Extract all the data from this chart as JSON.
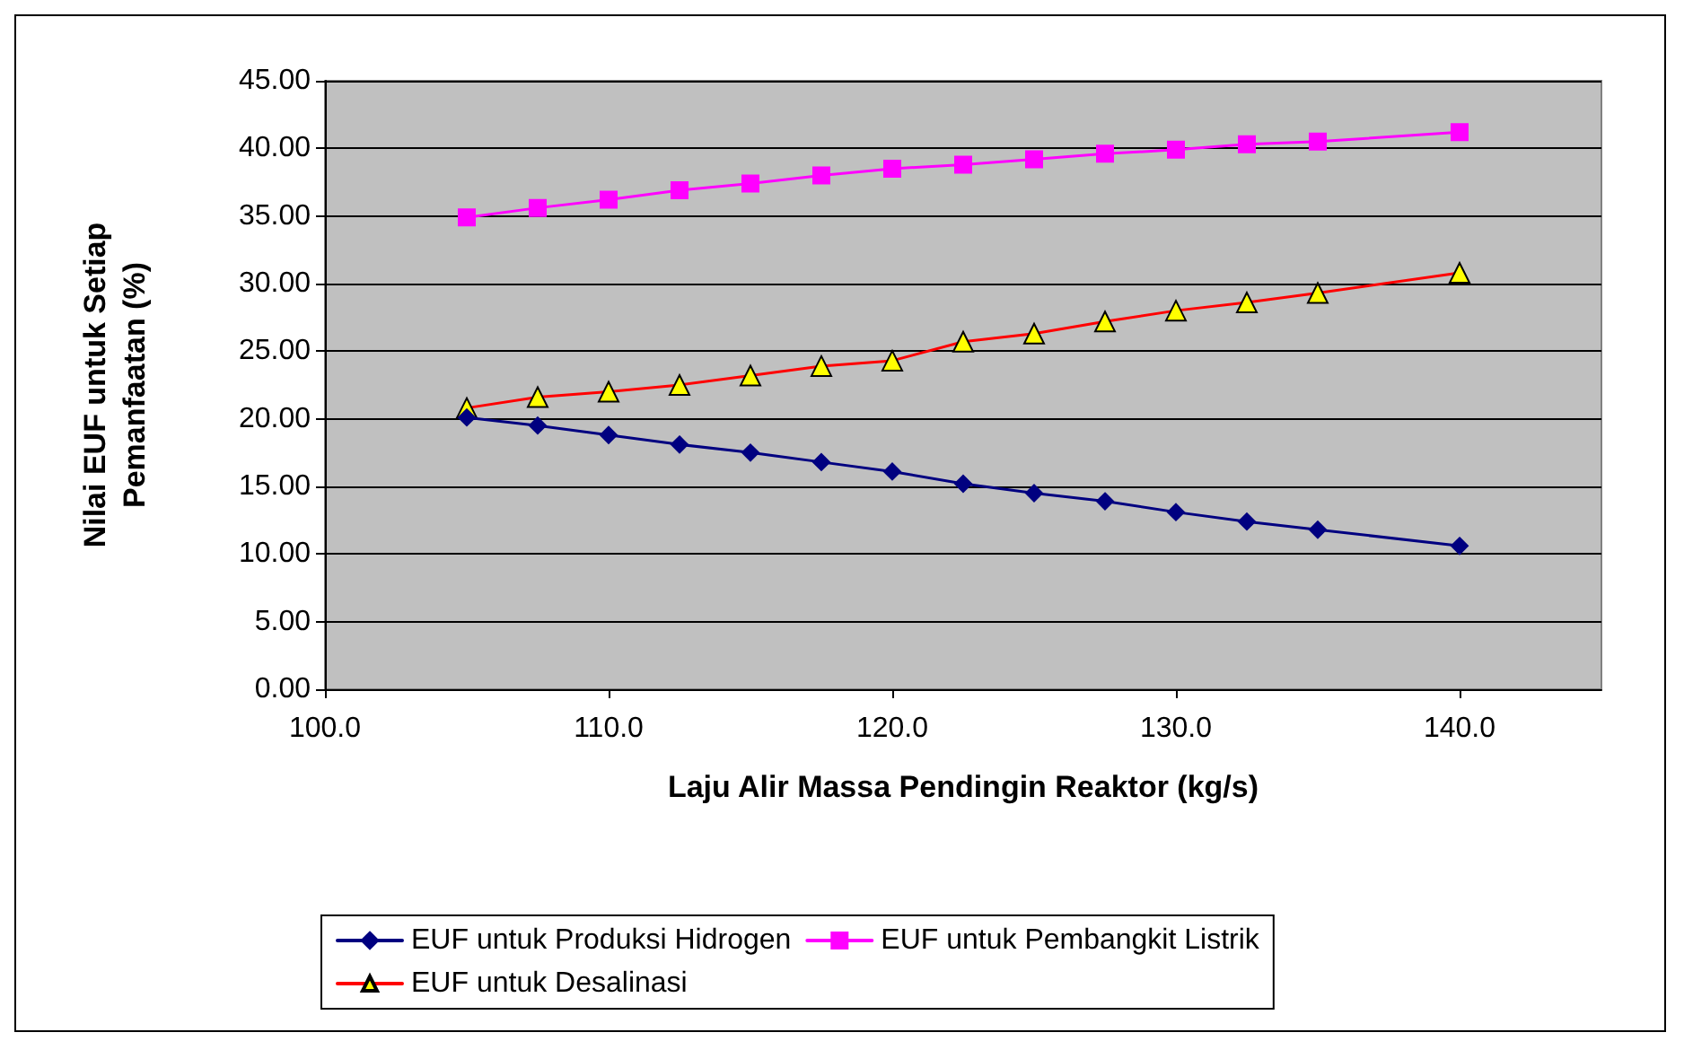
{
  "chart_data": {
    "type": "line",
    "xlabel": "Laju Alir Massa Pendingin Reaktor (kg/s)",
    "ylabel": "Nilai EUF untuk Setiap\nPemanfaatan (%)",
    "x": [
      105,
      107.5,
      110,
      112.5,
      115,
      117.5,
      120,
      122.5,
      125,
      127.5,
      130,
      132.5,
      135,
      140
    ],
    "series": [
      {
        "name": "EUF untuk Produksi Hidrogen",
        "color": "#000080",
        "marker": "diamond",
        "values": [
          20.1,
          19.5,
          18.8,
          18.1,
          17.5,
          16.8,
          16.1,
          15.2,
          14.5,
          13.9,
          13.1,
          12.4,
          11.8,
          10.6
        ]
      },
      {
        "name": "EUF untuk Pembangkit Listrik",
        "color": "#ff00ff",
        "marker": "square",
        "values": [
          34.9,
          35.6,
          36.2,
          36.9,
          37.4,
          38.0,
          38.5,
          38.8,
          39.2,
          39.6,
          39.9,
          40.3,
          40.5,
          41.2
        ]
      },
      {
        "name": "EUF untuk Desalinasi",
        "color": "#ff0000",
        "marker": "triangle",
        "values": [
          20.8,
          21.6,
          22.0,
          22.5,
          23.2,
          23.9,
          24.3,
          25.7,
          26.3,
          27.2,
          28.0,
          28.6,
          29.3,
          30.8
        ]
      }
    ],
    "xlim": [
      100,
      145
    ],
    "xticks": [
      {
        "value": 100,
        "label": "100.0"
      },
      {
        "value": 110,
        "label": "110.0"
      },
      {
        "value": 120,
        "label": "120.0"
      },
      {
        "value": 130,
        "label": "130.0"
      },
      {
        "value": 140,
        "label": "140.0"
      }
    ],
    "ylim": [
      0,
      45
    ],
    "yticks": [
      {
        "value": 0,
        "label": "0.00"
      },
      {
        "value": 5,
        "label": "5.00"
      },
      {
        "value": 10,
        "label": "10.00"
      },
      {
        "value": 15,
        "label": "15.00"
      },
      {
        "value": 20,
        "label": "20.00"
      },
      {
        "value": 25,
        "label": "25.00"
      },
      {
        "value": 30,
        "label": "30.00"
      },
      {
        "value": 35,
        "label": "35.00"
      },
      {
        "value": 40,
        "label": "40.00"
      },
      {
        "value": 45,
        "label": "45.00"
      }
    ],
    "grid": "y",
    "legend": "bottom",
    "line_style": "solid"
  }
}
